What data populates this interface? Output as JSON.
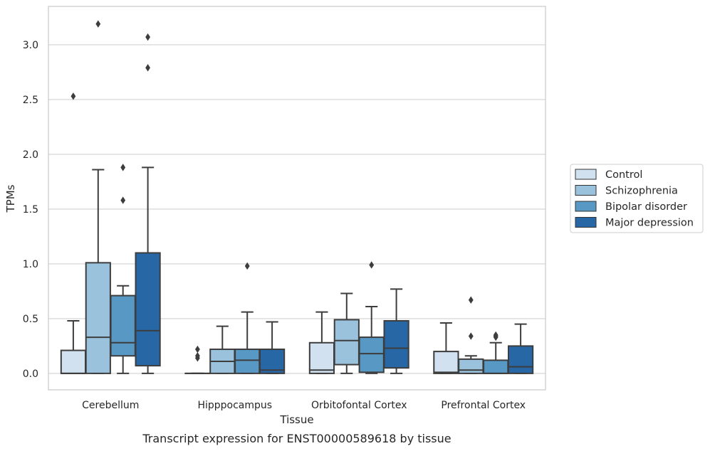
{
  "chart_data": {
    "type": "boxplot",
    "title": "",
    "caption": "Transcript expression for ENST00000589618 by tissue",
    "xlabel": "Tissue",
    "ylabel": "TPMs",
    "ylim": [
      -0.15,
      3.35
    ],
    "yticks": [
      0.0,
      0.5,
      1.0,
      1.5,
      2.0,
      2.5,
      3.0
    ],
    "ytick_labels": [
      "0.0",
      "0.5",
      "1.0",
      "1.5",
      "2.0",
      "2.5",
      "3.0"
    ],
    "grid": "horizontal",
    "legend_position": "right",
    "categories": [
      "Cerebellum",
      "Hipppocampus",
      "Orbitofontal Cortex",
      "Prefrontal Cortex"
    ],
    "series": [
      {
        "name": "Control",
        "color": "#d1e1f0",
        "boxes": [
          {
            "whislo": 0.0,
            "q1": 0.0,
            "med": 0.0,
            "q3": 0.21,
            "whishi": 0.48,
            "fliers": [
              2.53
            ]
          },
          {
            "whislo": 0.0,
            "q1": 0.0,
            "med": 0.0,
            "q3": 0.0,
            "whishi": 0.0,
            "fliers": [
              0.22,
              0.16,
              0.14
            ]
          },
          {
            "whislo": 0.0,
            "q1": 0.0,
            "med": 0.03,
            "q3": 0.28,
            "whishi": 0.56,
            "fliers": []
          },
          {
            "whislo": 0.0,
            "q1": 0.0,
            "med": 0.01,
            "q3": 0.2,
            "whishi": 0.46,
            "fliers": []
          }
        ]
      },
      {
        "name": "Schizophrenia",
        "color": "#9bc2dd",
        "boxes": [
          {
            "whislo": 0.0,
            "q1": 0.0,
            "med": 0.33,
            "q3": 1.01,
            "whishi": 1.86,
            "fliers": [
              3.19
            ]
          },
          {
            "whislo": 0.0,
            "q1": 0.0,
            "med": 0.11,
            "q3": 0.22,
            "whishi": 0.43,
            "fliers": []
          },
          {
            "whislo": 0.0,
            "q1": 0.08,
            "med": 0.3,
            "q3": 0.49,
            "whishi": 0.73,
            "fliers": []
          },
          {
            "whislo": 0.0,
            "q1": 0.0,
            "med": 0.03,
            "q3": 0.13,
            "whishi": 0.16,
            "fliers": [
              0.34,
              0.67
            ]
          }
        ]
      },
      {
        "name": "Bipolar disorder",
        "color": "#5898c5",
        "boxes": [
          {
            "whislo": 0.0,
            "q1": 0.16,
            "med": 0.28,
            "q3": 0.71,
            "whishi": 0.8,
            "fliers": [
              1.58,
              1.88
            ]
          },
          {
            "whislo": 0.0,
            "q1": 0.0,
            "med": 0.12,
            "q3": 0.22,
            "whishi": 0.56,
            "fliers": [
              0.98
            ]
          },
          {
            "whislo": 0.0,
            "q1": 0.01,
            "med": 0.18,
            "q3": 0.33,
            "whishi": 0.61,
            "fliers": [
              0.99
            ]
          },
          {
            "whislo": 0.0,
            "q1": 0.0,
            "med": 0.0,
            "q3": 0.12,
            "whishi": 0.28,
            "fliers": [
              0.33,
              0.34,
              0.35
            ]
          }
        ]
      },
      {
        "name": "Major depression",
        "color": "#2767a6",
        "boxes": [
          {
            "whislo": 0.0,
            "q1": 0.07,
            "med": 0.39,
            "q3": 1.1,
            "whishi": 1.88,
            "fliers": [
              2.79,
              3.07
            ]
          },
          {
            "whislo": 0.0,
            "q1": 0.0,
            "med": 0.03,
            "q3": 0.22,
            "whishi": 0.47,
            "fliers": []
          },
          {
            "whislo": 0.0,
            "q1": 0.05,
            "med": 0.23,
            "q3": 0.48,
            "whishi": 0.77,
            "fliers": []
          },
          {
            "whislo": 0.0,
            "q1": 0.0,
            "med": 0.06,
            "q3": 0.25,
            "whishi": 0.45,
            "fliers": []
          }
        ]
      }
    ]
  }
}
